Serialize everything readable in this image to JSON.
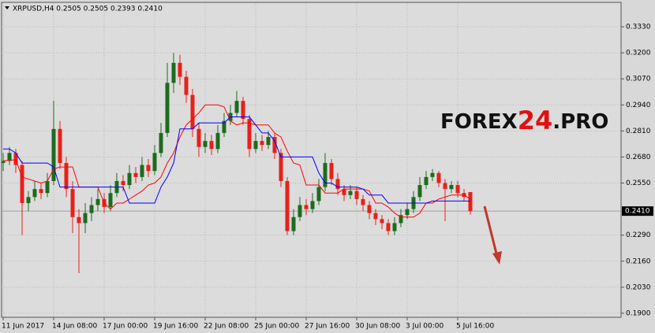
{
  "chart_data": {
    "type": "candlestick",
    "title": "XRPUSD,H4  0.2505 0.2505 0.2393 0.2410",
    "watermark": {
      "part1": "FOREX",
      "part2": "24",
      "part3": ".PRO"
    },
    "categories": [
      "11 Jun 2017",
      null,
      null,
      null,
      null,
      null,
      null,
      null,
      "14 Jun 08:00",
      null,
      null,
      null,
      null,
      null,
      null,
      null,
      "17 Jun 00:00",
      null,
      null,
      null,
      null,
      null,
      null,
      null,
      "19 Jun 16:00",
      null,
      null,
      null,
      null,
      null,
      null,
      null,
      "22 Jun 08:00",
      null,
      null,
      null,
      null,
      null,
      null,
      null,
      "25 Jun 00:00",
      null,
      null,
      null,
      null,
      null,
      null,
      null,
      "27 Jun 16:00",
      null,
      null,
      null,
      null,
      null,
      null,
      null,
      "30 Jun 08:00",
      null,
      null,
      null,
      null,
      null,
      null,
      null,
      "3 Jul 00:00",
      null,
      null,
      null,
      null,
      null,
      null,
      null,
      "5 Jul 16:00",
      null,
      null
    ],
    "open": [
      0.265,
      0.266,
      0.27,
      0.264,
      0.245,
      0.248,
      0.252,
      0.25,
      0.256,
      0.282,
      0.265,
      0.252,
      0.238,
      0.235,
      0.24,
      0.244,
      0.247,
      0.243,
      0.25,
      0.256,
      0.254,
      0.26,
      0.258,
      0.264,
      0.261,
      0.27,
      0.28,
      0.305,
      0.315,
      0.308,
      0.299,
      0.282,
      0.273,
      0.276,
      0.272,
      0.28,
      0.286,
      0.29,
      0.296,
      0.287,
      0.272,
      0.276,
      0.274,
      0.278,
      0.27,
      0.256,
      0.231,
      0.238,
      0.244,
      0.242,
      0.246,
      0.253,
      0.265,
      0.257,
      0.252,
      0.249,
      0.251,
      0.247,
      0.244,
      0.24,
      0.237,
      0.235,
      0.231,
      0.235,
      0.239,
      0.242,
      0.248,
      0.254,
      0.258,
      0.26,
      0.255,
      0.252,
      0.254,
      0.25,
      0.2505
    ],
    "high": [
      0.27,
      0.273,
      0.272,
      0.266,
      0.251,
      0.256,
      0.255,
      0.26,
      0.296,
      0.286,
      0.268,
      0.256,
      0.242,
      0.245,
      0.248,
      0.252,
      0.25,
      0.254,
      0.26,
      0.259,
      0.264,
      0.263,
      0.268,
      0.267,
      0.274,
      0.285,
      0.315,
      0.32,
      0.319,
      0.311,
      0.302,
      0.285,
      0.28,
      0.279,
      0.284,
      0.29,
      0.294,
      0.301,
      0.298,
      0.289,
      0.28,
      0.279,
      0.281,
      0.28,
      0.272,
      0.258,
      0.242,
      0.248,
      0.247,
      0.25,
      0.257,
      0.27,
      0.267,
      0.26,
      0.254,
      0.254,
      0.253,
      0.249,
      0.246,
      0.242,
      0.239,
      0.237,
      0.238,
      0.242,
      0.245,
      0.251,
      0.258,
      0.261,
      0.262,
      0.261,
      0.257,
      0.256,
      0.256,
      0.252,
      0.2505
    ],
    "low": [
      0.261,
      0.264,
      0.26,
      0.229,
      0.241,
      0.246,
      0.247,
      0.248,
      0.254,
      0.262,
      0.248,
      0.23,
      0.21,
      0.23,
      0.236,
      0.241,
      0.24,
      0.241,
      0.248,
      0.251,
      0.252,
      0.255,
      0.256,
      0.258,
      0.259,
      0.268,
      0.278,
      0.3,
      0.304,
      0.295,
      0.278,
      0.268,
      0.27,
      0.269,
      0.27,
      0.278,
      0.284,
      0.288,
      0.284,
      0.268,
      0.27,
      0.271,
      0.272,
      0.267,
      0.253,
      0.229,
      0.229,
      0.236,
      0.239,
      0.24,
      0.244,
      0.251,
      0.254,
      0.249,
      0.246,
      0.247,
      0.244,
      0.241,
      0.237,
      0.234,
      0.232,
      0.229,
      0.229,
      0.233,
      0.237,
      0.24,
      0.246,
      0.252,
      0.256,
      0.253,
      0.236,
      0.25,
      0.248,
      0.246,
      0.2393
    ],
    "close": [
      0.266,
      0.27,
      0.264,
      0.245,
      0.248,
      0.252,
      0.25,
      0.256,
      0.282,
      0.265,
      0.252,
      0.238,
      0.235,
      0.24,
      0.244,
      0.247,
      0.243,
      0.25,
      0.256,
      0.254,
      0.26,
      0.258,
      0.264,
      0.261,
      0.27,
      0.28,
      0.305,
      0.315,
      0.308,
      0.299,
      0.282,
      0.273,
      0.276,
      0.272,
      0.28,
      0.286,
      0.29,
      0.296,
      0.287,
      0.272,
      0.276,
      0.274,
      0.278,
      0.27,
      0.256,
      0.231,
      0.238,
      0.244,
      0.242,
      0.246,
      0.253,
      0.265,
      0.257,
      0.252,
      0.249,
      0.251,
      0.247,
      0.244,
      0.24,
      0.237,
      0.235,
      0.231,
      0.235,
      0.239,
      0.242,
      0.248,
      0.254,
      0.258,
      0.26,
      0.255,
      0.252,
      0.254,
      0.25,
      0.248,
      0.241
    ],
    "bull_color": "#1e6b1e",
    "bear_color": "#e8201a",
    "lines": [
      {
        "color": "#ff0000",
        "values": [
          0.266,
          0.2665,
          0.2665,
          0.258,
          0.257,
          0.256,
          0.255,
          0.256,
          0.262,
          0.263,
          0.263,
          0.263,
          0.253,
          0.253,
          0.253,
          0.253,
          0.245,
          0.242,
          0.245,
          0.245,
          0.247,
          0.249,
          0.251,
          0.254,
          0.255,
          0.258,
          0.265,
          0.27,
          0.278,
          0.284,
          0.287,
          0.29,
          0.294,
          0.294,
          0.294,
          0.293,
          0.286,
          0.284,
          0.285,
          0.285,
          0.284,
          0.284,
          0.284,
          0.28,
          0.278,
          0.271,
          0.265,
          0.264,
          0.254,
          0.254,
          0.254,
          0.25,
          0.25,
          0.25,
          0.252,
          0.252,
          0.252,
          0.252,
          0.251,
          0.245,
          0.245,
          0.243,
          0.24,
          0.238,
          0.238,
          0.238,
          0.24,
          0.245,
          0.245,
          0.247,
          0.248,
          0.249,
          0.249,
          0.249,
          0.247
        ]
      },
      {
        "color": "#0000ff",
        "values": [
          0.272,
          0.272,
          0.27,
          0.265,
          0.265,
          0.265,
          0.265,
          0.265,
          0.263,
          0.253,
          0.253,
          0.253,
          0.253,
          0.253,
          0.253,
          0.253,
          0.253,
          0.253,
          0.253,
          0.253,
          0.245,
          0.245,
          0.245,
          0.245,
          0.245,
          0.253,
          0.258,
          0.265,
          0.282,
          0.282,
          0.282,
          0.285,
          0.285,
          0.285,
          0.285,
          0.285,
          0.288,
          0.288,
          0.288,
          0.288,
          0.284,
          0.28,
          0.28,
          0.276,
          0.268,
          0.268,
          0.268,
          0.268,
          0.268,
          0.268,
          0.26,
          0.255,
          0.255,
          0.253,
          0.253,
          0.253,
          0.253,
          0.252,
          0.249,
          0.249,
          0.249,
          0.245,
          0.245,
          0.245,
          0.245,
          0.245,
          0.245,
          0.245,
          0.246,
          0.246,
          0.246,
          0.246,
          0.246,
          0.246,
          0.246
        ]
      }
    ],
    "last_price": {
      "value": 0.241,
      "label": "0.2410"
    },
    "ylim": [
      0.188,
      0.3448
    ],
    "yticks": [
      {
        "value": 0.333,
        "label": "0.3330"
      },
      {
        "value": 0.32,
        "label": "0.3200"
      },
      {
        "value": 0.307,
        "label": "0.3070"
      },
      {
        "value": 0.294,
        "label": "0.2940"
      },
      {
        "value": 0.281,
        "label": "0.2810"
      },
      {
        "value": 0.268,
        "label": "0.2680"
      },
      {
        "value": 0.255,
        "label": "0.2550"
      },
      {
        "value": 0.229,
        "label": "0.2290"
      },
      {
        "value": 0.216,
        "label": "0.2160"
      },
      {
        "value": 0.203,
        "label": "0.2030"
      },
      {
        "value": 0.19,
        "label": "0.1900"
      }
    ],
    "grid": true
  }
}
